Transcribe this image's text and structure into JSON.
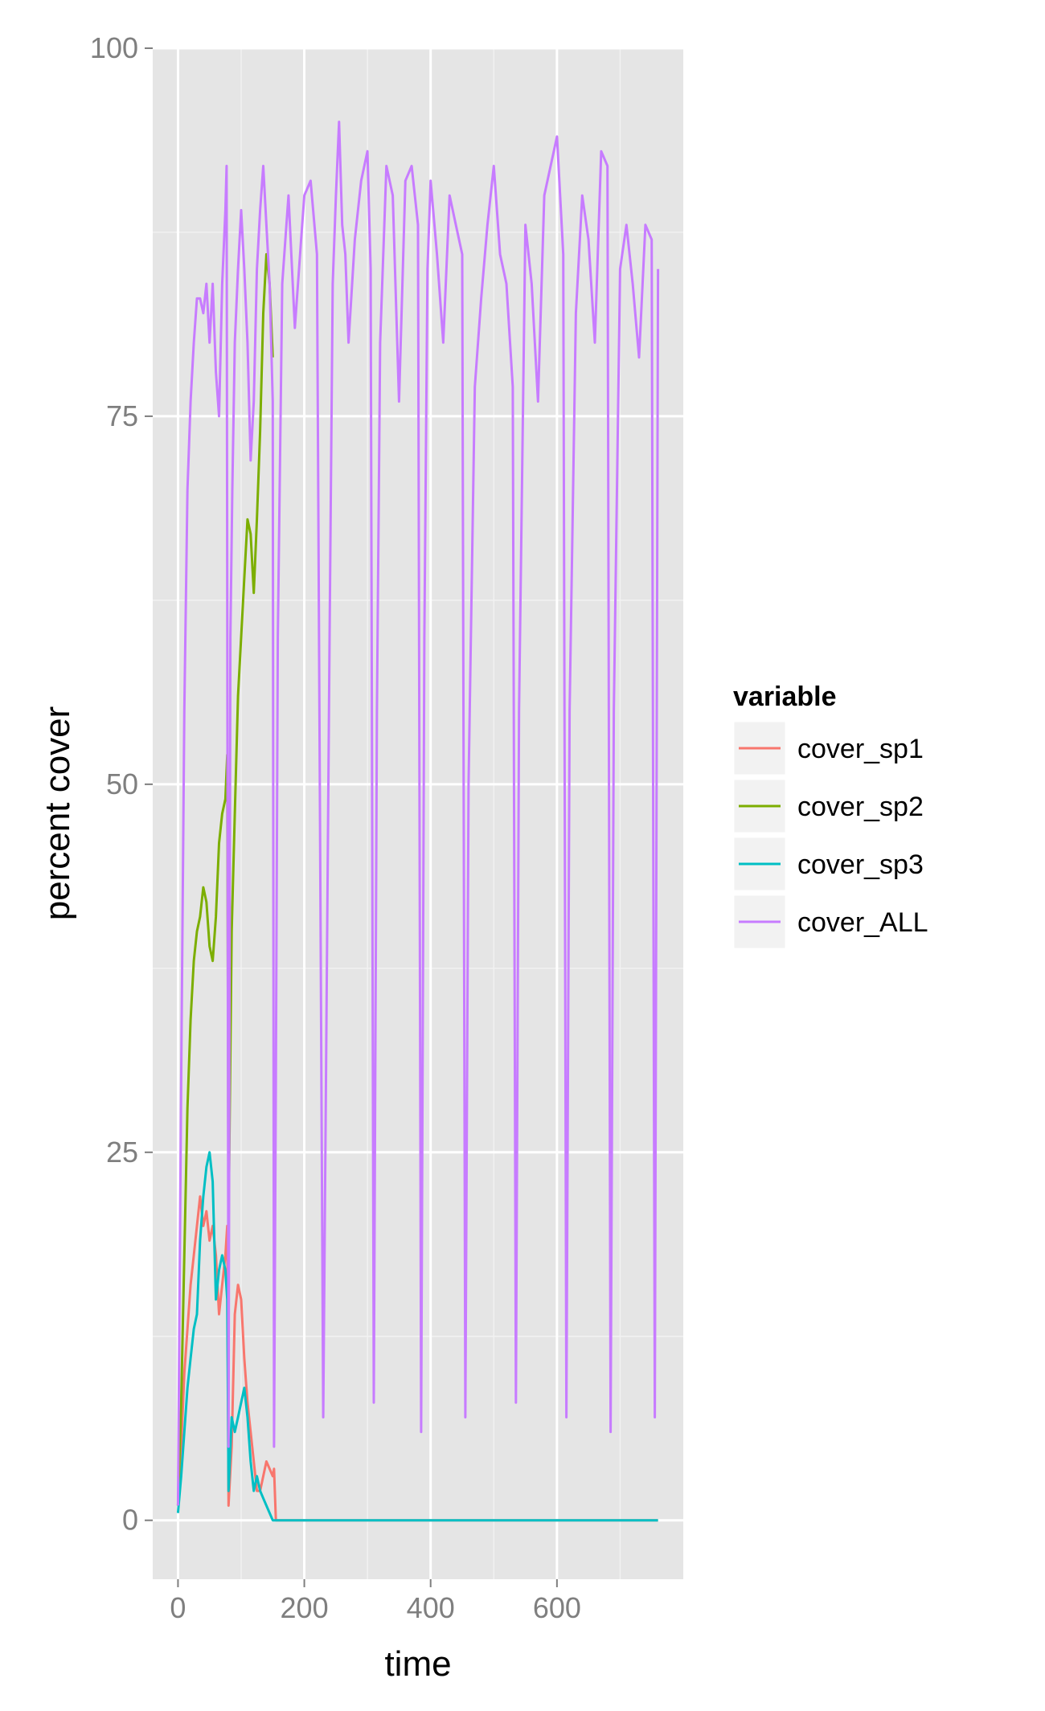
{
  "chart_data": {
    "type": "line",
    "title": "",
    "xlabel": "time",
    "ylabel": "percent cover",
    "xlim": [
      -40,
      800
    ],
    "ylim": [
      -4,
      100
    ],
    "x_ticks": [
      0,
      200,
      400,
      600
    ],
    "x_tick_labels": [
      "0",
      "200",
      "400",
      "600"
    ],
    "y_ticks": [
      0,
      25,
      50,
      75,
      100
    ],
    "y_tick_labels": [
      "0",
      "25",
      "50",
      "75",
      "100"
    ],
    "grid": true,
    "background": "#e5e5e5",
    "legend": {
      "title": "variable",
      "position": "right"
    },
    "series": [
      {
        "name": "cover_sp1",
        "color": "#f8766d",
        "x": [
          0,
          5,
          10,
          15,
          20,
          25,
          30,
          35,
          40,
          45,
          50,
          55,
          60,
          65,
          70,
          75,
          78,
          80,
          85,
          90,
          95,
          100,
          105,
          110,
          115,
          120,
          125,
          130,
          135,
          140,
          145,
          150,
          152,
          155,
          160,
          200,
          300,
          400,
          500,
          600,
          700,
          760
        ],
        "y": [
          1,
          5,
          10,
          13,
          16,
          18,
          20,
          22,
          20,
          21,
          19,
          20,
          18,
          14,
          16,
          18,
          20,
          1,
          5,
          14,
          16,
          15,
          11,
          8,
          6,
          4,
          2,
          2,
          3,
          4,
          3.5,
          3,
          3.5,
          0,
          0,
          0,
          0,
          0,
          0,
          0,
          0,
          0
        ]
      },
      {
        "name": "cover_sp2",
        "color": "#7cae00",
        "x": [
          0,
          5,
          10,
          15,
          20,
          25,
          30,
          35,
          40,
          45,
          50,
          55,
          60,
          65,
          70,
          75,
          78,
          80,
          85,
          90,
          95,
          100,
          105,
          110,
          115,
          120,
          125,
          130,
          135,
          140,
          145,
          150
        ],
        "y": [
          1,
          8,
          18,
          28,
          34,
          38,
          40,
          41,
          43,
          42,
          39,
          38,
          41,
          46,
          48,
          49,
          52,
          20,
          40,
          48,
          56,
          60,
          64,
          68,
          67,
          63,
          68,
          74,
          82,
          86,
          84,
          79
        ]
      },
      {
        "name": "cover_sp3",
        "color": "#00bfc4",
        "x": [
          0,
          5,
          10,
          15,
          20,
          25,
          30,
          35,
          40,
          45,
          50,
          55,
          60,
          65,
          70,
          75,
          78,
          80,
          85,
          90,
          95,
          100,
          105,
          110,
          115,
          120,
          125,
          130,
          135,
          140,
          145,
          150,
          152,
          155,
          160,
          200,
          300,
          400,
          500,
          600,
          700,
          760
        ],
        "y": [
          0.5,
          3,
          6,
          9,
          11,
          13,
          14,
          19,
          22,
          24,
          25,
          23,
          15,
          17,
          18,
          17,
          15,
          2,
          7,
          6,
          7,
          8,
          9,
          7,
          4,
          2,
          3,
          2,
          1.5,
          1,
          0.5,
          0,
          0,
          0,
          0,
          0,
          0,
          0,
          0,
          0,
          0,
          0
        ]
      },
      {
        "name": "cover_ALL",
        "color": "#c77cff",
        "x": [
          0,
          5,
          10,
          15,
          20,
          25,
          30,
          35,
          40,
          45,
          50,
          55,
          60,
          65,
          70,
          75,
          77,
          80,
          83,
          86,
          90,
          95,
          100,
          105,
          110,
          115,
          120,
          125,
          130,
          135,
          140,
          145,
          150,
          152,
          155,
          158,
          165,
          175,
          185,
          195,
          200,
          210,
          220,
          230,
          240,
          245,
          250,
          255,
          260,
          265,
          270,
          280,
          290,
          300,
          305,
          310,
          315,
          320,
          330,
          340,
          350,
          360,
          370,
          380,
          385,
          390,
          395,
          400,
          410,
          420,
          430,
          440,
          450,
          455,
          460,
          470,
          480,
          490,
          500,
          510,
          520,
          530,
          535,
          540,
          550,
          560,
          570,
          580,
          590,
          600,
          610,
          615,
          620,
          630,
          640,
          650,
          660,
          670,
          680,
          685,
          690,
          700,
          710,
          720,
          730,
          740,
          750,
          755,
          760
        ],
        "y": [
          1,
          30,
          55,
          70,
          76,
          80,
          83,
          83,
          82,
          84,
          80,
          84,
          78,
          75,
          84,
          89,
          92,
          5,
          60,
          70,
          80,
          85,
          89,
          85,
          80,
          72,
          76,
          85,
          89,
          92,
          88,
          84,
          76,
          5,
          30,
          60,
          84,
          90,
          81,
          87,
          90,
          91,
          86,
          7,
          60,
          84,
          90,
          95,
          88,
          86,
          80,
          87,
          91,
          93,
          85,
          8,
          55,
          80,
          92,
          90,
          76,
          91,
          92,
          88,
          6,
          60,
          85,
          91,
          86,
          80,
          90,
          88,
          86,
          7,
          50,
          77,
          83,
          88,
          92,
          86,
          84,
          77,
          8,
          55,
          88,
          84,
          76,
          90,
          92,
          94,
          86,
          7,
          55,
          82,
          90,
          87,
          80,
          93,
          92,
          6,
          55,
          85,
          88,
          84,
          79,
          88,
          87,
          7,
          85
        ]
      }
    ]
  }
}
